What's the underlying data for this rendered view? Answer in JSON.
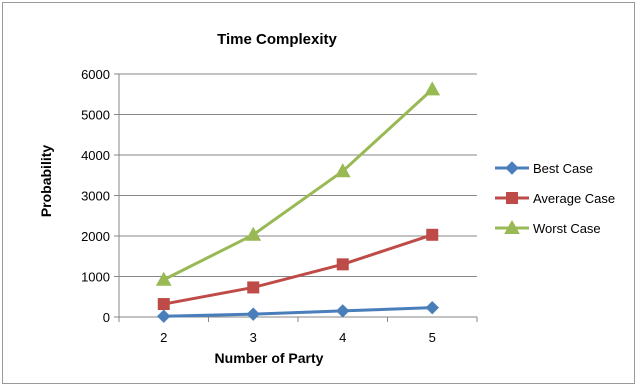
{
  "chart_data": {
    "type": "line",
    "title": "Time Complexity",
    "xlabel": "Number of Party",
    "ylabel": "Probability",
    "categories": [
      "2",
      "3",
      "4",
      "5"
    ],
    "ylim": [
      0,
      6000
    ],
    "yticks": [
      0,
      1000,
      2000,
      3000,
      4000,
      5000,
      6000
    ],
    "grid": true,
    "legend_position": "right",
    "series": [
      {
        "name": "Best Case",
        "values": [
          20,
          70,
          150,
          230
        ],
        "color": "#4a7ebb",
        "marker": "diamond"
      },
      {
        "name": "Average Case",
        "values": [
          320,
          730,
          1300,
          2030
        ],
        "color": "#be4b48",
        "marker": "square"
      },
      {
        "name": "Worst Case",
        "values": [
          920,
          2030,
          3600,
          5620
        ],
        "color": "#98b954",
        "marker": "triangle"
      }
    ]
  }
}
